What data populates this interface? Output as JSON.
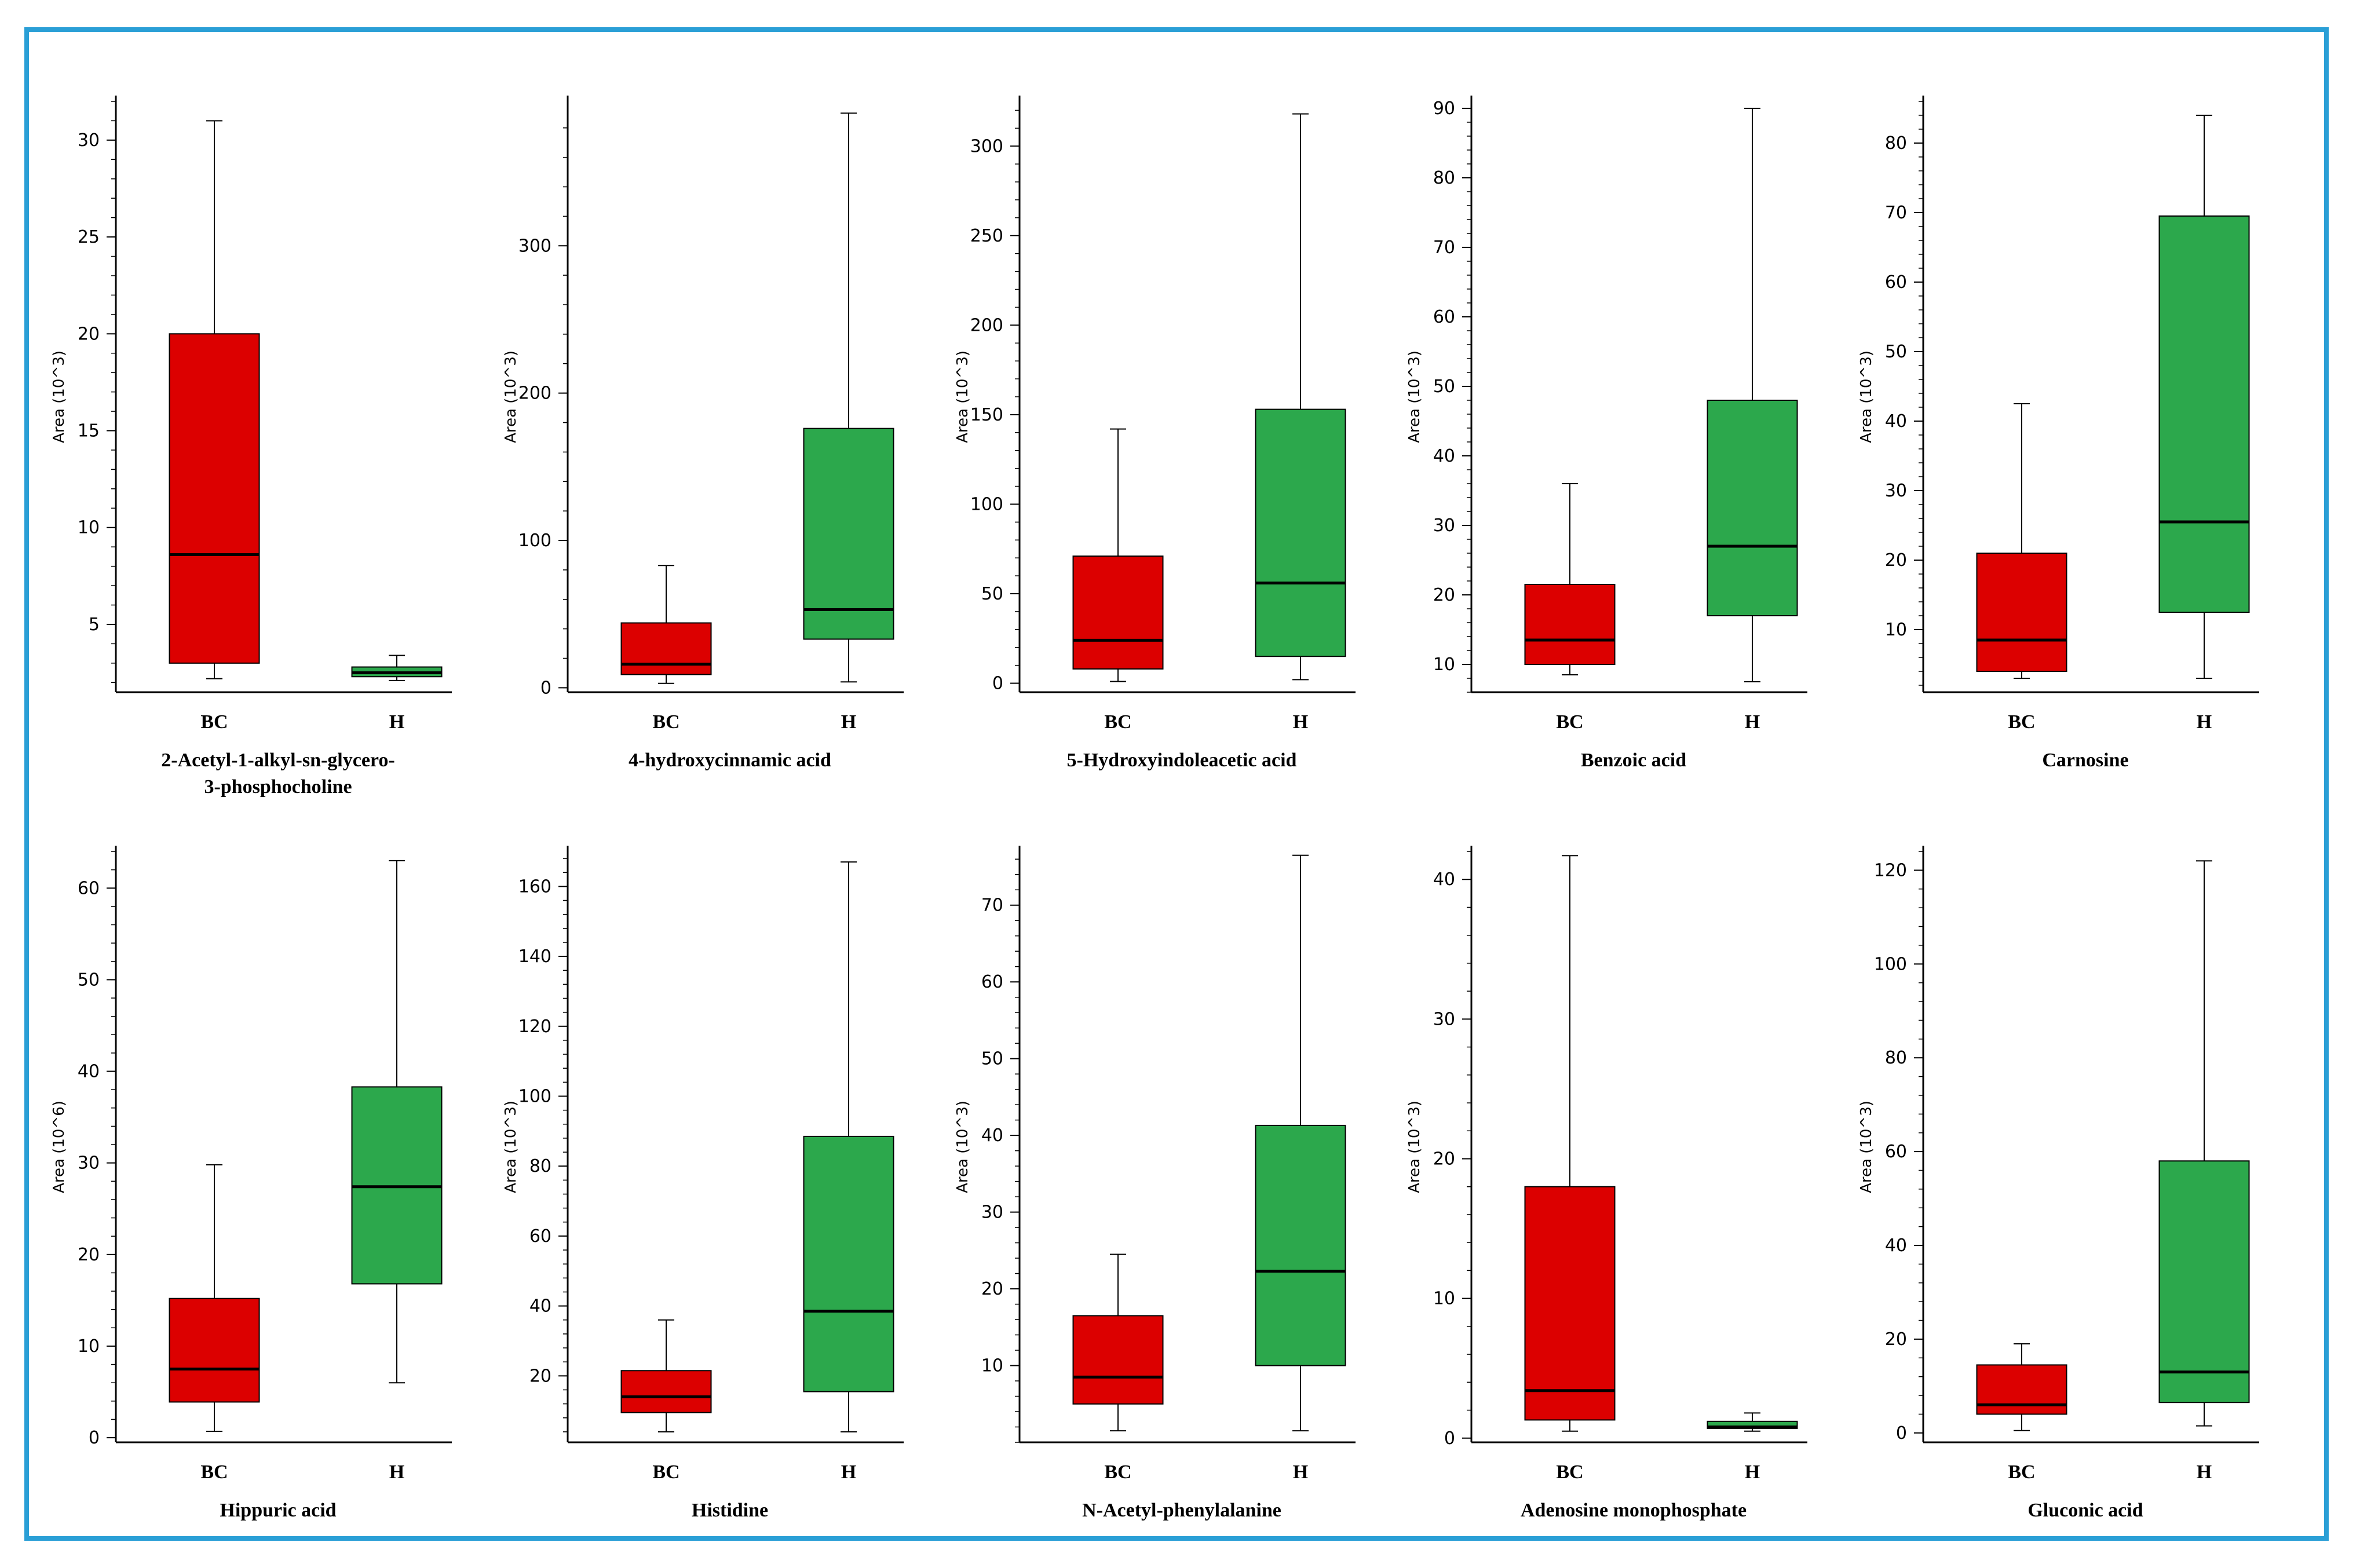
{
  "colors": {
    "bc": "#dc0000",
    "h": "#2ca84c",
    "frame": "#2a9fd6",
    "axis": "#000000"
  },
  "chart_data": [
    {
      "type": "box",
      "title": [
        "2-Acetyl-1-alkyl-sn-glycero-",
        "3-phosphocholine"
      ],
      "ylabel": "Area (10^3)",
      "ylim": [
        1.5,
        32
      ],
      "yticks": [
        5,
        10,
        15,
        20,
        25,
        30
      ],
      "categories": [
        "BC",
        "H"
      ],
      "boxes": [
        {
          "category": "BC",
          "min": 2.2,
          "q1": 3.0,
          "median": 8.6,
          "q3": 20.0,
          "max": 31.0
        },
        {
          "category": "H",
          "min": 2.1,
          "q1": 2.3,
          "median": 2.5,
          "q3": 2.8,
          "max": 3.4
        }
      ]
    },
    {
      "type": "box",
      "title": [
        "4-hydroxycinnamic acid"
      ],
      "ylabel": "Area (10^3)",
      "ylim": [
        -3,
        398
      ],
      "yticks": [
        0,
        100,
        200,
        300
      ],
      "categories": [
        "BC",
        "H"
      ],
      "boxes": [
        {
          "category": "BC",
          "min": 3,
          "q1": 9,
          "median": 16,
          "q3": 44,
          "max": 83
        },
        {
          "category": "H",
          "min": 4,
          "q1": 33,
          "median": 53,
          "q3": 176,
          "max": 390
        }
      ]
    },
    {
      "type": "box",
      "title": [
        "5-Hydroxyindoleacetic acid"
      ],
      "ylabel": "Area (10^3)",
      "ylim": [
        -5,
        325
      ],
      "yticks": [
        0,
        50,
        100,
        150,
        200,
        250,
        300
      ],
      "categories": [
        "BC",
        "H"
      ],
      "boxes": [
        {
          "category": "BC",
          "min": 1,
          "q1": 8,
          "median": 24,
          "q3": 71,
          "max": 142
        },
        {
          "category": "H",
          "min": 2,
          "q1": 15,
          "median": 56,
          "q3": 153,
          "max": 318
        }
      ]
    },
    {
      "type": "box",
      "title": [
        "Benzoic acid"
      ],
      "ylabel": "Area (10^3)",
      "ylim": [
        6,
        91
      ],
      "yticks": [
        10,
        20,
        30,
        40,
        50,
        60,
        70,
        80,
        90
      ],
      "categories": [
        "BC",
        "H"
      ],
      "boxes": [
        {
          "category": "BC",
          "min": 8.5,
          "q1": 10,
          "median": 13.5,
          "q3": 21.5,
          "max": 36
        },
        {
          "category": "H",
          "min": 7.5,
          "q1": 17,
          "median": 27,
          "q3": 48,
          "max": 90
        }
      ]
    },
    {
      "type": "box",
      "title": [
        "Carnosine"
      ],
      "ylabel": "Area (10^3)",
      "ylim": [
        1,
        86
      ],
      "yticks": [
        10,
        20,
        30,
        40,
        50,
        60,
        70,
        80
      ],
      "categories": [
        "BC",
        "H"
      ],
      "boxes": [
        {
          "category": "BC",
          "min": 3,
          "q1": 4,
          "median": 8.5,
          "q3": 21,
          "max": 42.5
        },
        {
          "category": "H",
          "min": 3,
          "q1": 12.5,
          "median": 25.5,
          "q3": 69.5,
          "max": 84
        }
      ]
    },
    {
      "type": "box",
      "title": [
        "Hippuric acid"
      ],
      "ylabel": "Area (10^6)",
      "ylim": [
        -0.5,
        64
      ],
      "yticks": [
        0,
        10,
        20,
        30,
        40,
        50,
        60
      ],
      "categories": [
        "BC",
        "H"
      ],
      "boxes": [
        {
          "category": "BC",
          "min": 0.7,
          "q1": 3.9,
          "median": 7.5,
          "q3": 15.2,
          "max": 29.8
        },
        {
          "category": "H",
          "min": 6.0,
          "q1": 16.8,
          "median": 27.4,
          "q3": 38.3,
          "max": 63.0
        }
      ]
    },
    {
      "type": "box",
      "title": [
        "Histidine"
      ],
      "ylabel": "Area (10^3)",
      "ylim": [
        1,
        170
      ],
      "yticks": [
        20,
        40,
        60,
        80,
        100,
        120,
        140,
        160
      ],
      "categories": [
        "BC",
        "H"
      ],
      "boxes": [
        {
          "category": "BC",
          "min": 4,
          "q1": 9.5,
          "median": 14,
          "q3": 21.5,
          "max": 36
        },
        {
          "category": "H",
          "min": 4,
          "q1": 15.5,
          "median": 38.5,
          "q3": 88.5,
          "max": 167
        }
      ]
    },
    {
      "type": "box",
      "title": [
        "N-Acetyl-phenylalanine"
      ],
      "ylabel": "Area (10^3)",
      "ylim": [
        0,
        77
      ],
      "yticks": [
        10,
        20,
        30,
        40,
        50,
        60,
        70
      ],
      "categories": [
        "BC",
        "H"
      ],
      "boxes": [
        {
          "category": "BC",
          "min": 1.5,
          "q1": 5,
          "median": 8.5,
          "q3": 16.5,
          "max": 24.5
        },
        {
          "category": "H",
          "min": 1.5,
          "q1": 10,
          "median": 22.3,
          "q3": 41.3,
          "max": 76.5
        }
      ]
    },
    {
      "type": "box",
      "title": [
        "Adenosine monophosphate"
      ],
      "ylabel": "Area (10^3)",
      "ylim": [
        -0.3,
        42
      ],
      "yticks": [
        0,
        10,
        20,
        30,
        40
      ],
      "categories": [
        "BC",
        "H"
      ],
      "boxes": [
        {
          "category": "BC",
          "min": 0.5,
          "q1": 1.3,
          "median": 3.4,
          "q3": 18.0,
          "max": 41.7
        },
        {
          "category": "H",
          "min": 0.5,
          "q1": 0.7,
          "median": 0.8,
          "q3": 1.2,
          "max": 1.8
        }
      ]
    },
    {
      "type": "box",
      "title": [
        "Gluconic acid"
      ],
      "ylabel": "Area (10^3)",
      "ylim": [
        -2,
        124
      ],
      "yticks": [
        0,
        20,
        40,
        60,
        80,
        100,
        120
      ],
      "categories": [
        "BC",
        "H"
      ],
      "boxes": [
        {
          "category": "BC",
          "min": 0.5,
          "q1": 4,
          "median": 6,
          "q3": 14.5,
          "max": 19
        },
        {
          "category": "H",
          "min": 1.5,
          "q1": 6.5,
          "median": 13,
          "q3": 58,
          "max": 122
        }
      ]
    }
  ]
}
